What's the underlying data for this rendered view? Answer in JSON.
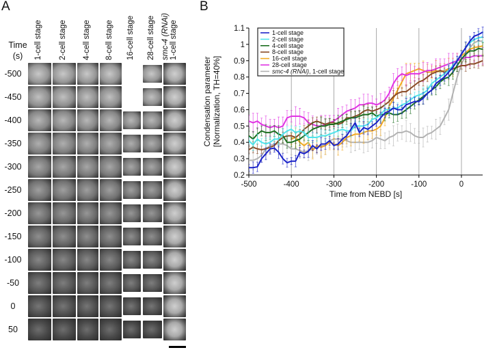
{
  "panelA": {
    "letter": "A",
    "time_header": [
      "Time",
      "(s)"
    ],
    "columns": [
      {
        "label": "1-cell stage",
        "italic_part": "",
        "line2": ""
      },
      {
        "label": "2-cell stage",
        "italic_part": "",
        "line2": ""
      },
      {
        "label": "4-cell stage",
        "italic_part": "",
        "line2": ""
      },
      {
        "label": "8-cell stage",
        "italic_part": "",
        "line2": ""
      },
      {
        "label": "16-cell stage",
        "italic_part": "",
        "line2": ""
      },
      {
        "label": "28-cell stage",
        "italic_part": "",
        "line2": ""
      },
      {
        "label": "",
        "italic_part": "smc-4 (RNAi)",
        "line2": "1-cell stage"
      }
    ],
    "rows": [
      "-500",
      "-450",
      "-400",
      "-350",
      "-300",
      "-250",
      "-200",
      "-150",
      "-100",
      "-50",
      "0",
      "50"
    ],
    "missing_cells": [
      [
        0,
        4
      ],
      [
        1,
        4
      ]
    ],
    "scale_bar": "scale-bar"
  },
  "chart_data": {
    "type": "line",
    "panel_letter": "B",
    "title": "",
    "xlabel": "Time from NEBD [s]",
    "ylabel_lines": [
      "Condensation parameter",
      "[Normalization, TH=40%]"
    ],
    "xlim": [
      -500,
      50
    ],
    "ylim": [
      0.2,
      1.1
    ],
    "xticks": [
      -500,
      -400,
      -300,
      -200,
      -100,
      0
    ],
    "yticks": [
      0.2,
      0.3,
      0.4,
      0.5,
      0.6,
      0.7,
      0.8,
      0.9,
      1,
      1.1
    ],
    "ytick_labels": [
      "0.2",
      "0.3",
      "0.4",
      "0.5",
      "0.6",
      "0.7",
      "0.8",
      "0.9",
      "1",
      "1.1"
    ],
    "xtick_labels": [
      "-500",
      "-400",
      "-300",
      "-200",
      "-100",
      "0"
    ],
    "grid": "vertical",
    "error_bars": true,
    "legend_position": "top-left",
    "series": [
      {
        "name": "1-cell stage",
        "italic": "",
        "color": "#1a22c8",
        "x": [
          -500,
          -490,
          -480,
          -470,
          -460,
          -450,
          -440,
          -430,
          -420,
          -410,
          -400,
          -390,
          -380,
          -370,
          -360,
          -350,
          -340,
          -330,
          -320,
          -310,
          -300,
          -290,
          -280,
          -270,
          -260,
          -250,
          -240,
          -230,
          -220,
          -210,
          -200,
          -190,
          -180,
          -170,
          -160,
          -150,
          -140,
          -130,
          -120,
          -110,
          -100,
          -90,
          -80,
          -70,
          -60,
          -50,
          -40,
          -30,
          -20,
          -10,
          0,
          10,
          20,
          30,
          40,
          50
        ],
        "y": [
          0.245,
          0.245,
          0.25,
          0.3,
          0.33,
          0.36,
          0.365,
          0.34,
          0.3,
          0.275,
          0.285,
          0.285,
          0.34,
          0.33,
          0.345,
          0.38,
          0.36,
          0.39,
          0.39,
          0.41,
          0.38,
          0.39,
          0.42,
          0.44,
          0.48,
          0.52,
          0.46,
          0.49,
          0.48,
          0.5,
          0.52,
          0.55,
          0.58,
          0.59,
          0.61,
          0.6,
          0.6,
          0.63,
          0.64,
          0.65,
          0.65,
          0.67,
          0.7,
          0.72,
          0.76,
          0.78,
          0.8,
          0.83,
          0.86,
          0.9,
          0.94,
          0.98,
          1.02,
          1.05,
          1.06,
          1.075
        ],
        "err": 0.03
      },
      {
        "name": "2-cell stage",
        "italic": "",
        "color": "#50e4ec",
        "x": [
          -500,
          -490,
          -480,
          -470,
          -460,
          -450,
          -440,
          -430,
          -420,
          -410,
          -400,
          -390,
          -380,
          -370,
          -360,
          -350,
          -340,
          -330,
          -320,
          -310,
          -300,
          -290,
          -280,
          -270,
          -260,
          -250,
          -240,
          -230,
          -220,
          -210,
          -200,
          -190,
          -180,
          -170,
          -160,
          -150,
          -140,
          -130,
          -120,
          -110,
          -100,
          -90,
          -80,
          -70,
          -60,
          -50,
          -40,
          -30,
          -20,
          -10,
          0,
          10,
          20,
          30,
          40,
          50
        ],
        "y": [
          0.41,
          0.385,
          0.42,
          0.4,
          0.39,
          0.4,
          0.42,
          0.42,
          0.45,
          0.47,
          0.48,
          0.46,
          0.47,
          0.46,
          0.43,
          0.43,
          0.43,
          0.44,
          0.44,
          0.45,
          0.46,
          0.47,
          0.48,
          0.47,
          0.47,
          0.5,
          0.5,
          0.5,
          0.51,
          0.54,
          0.55,
          0.57,
          0.6,
          0.6,
          0.61,
          0.61,
          0.63,
          0.64,
          0.66,
          0.68,
          0.69,
          0.7,
          0.72,
          0.76,
          0.78,
          0.8,
          0.82,
          0.84,
          0.87,
          0.9,
          0.94,
          0.98,
          1.01,
          1.03,
          1.04,
          1.045
        ],
        "err": 0.03
      },
      {
        "name": "4-cell stage",
        "italic": "",
        "color": "#1b6e1f",
        "x": [
          -500,
          -490,
          -480,
          -470,
          -460,
          -450,
          -440,
          -430,
          -420,
          -410,
          -400,
          -390,
          -380,
          -370,
          -360,
          -350,
          -340,
          -330,
          -320,
          -310,
          -300,
          -290,
          -280,
          -270,
          -260,
          -250,
          -240,
          -230,
          -220,
          -210,
          -200,
          -190,
          -180,
          -170,
          -160,
          -150,
          -140,
          -130,
          -120,
          -110,
          -100,
          -90,
          -80,
          -70,
          -60,
          -50,
          -40,
          -30,
          -20,
          -10,
          0,
          10,
          20,
          30,
          40,
          50
        ],
        "y": [
          0.44,
          0.42,
          0.45,
          0.47,
          0.46,
          0.46,
          0.47,
          0.45,
          0.44,
          0.4,
          0.4,
          0.41,
          0.42,
          0.44,
          0.46,
          0.48,
          0.49,
          0.5,
          0.5,
          0.51,
          0.51,
          0.52,
          0.53,
          0.54,
          0.55,
          0.55,
          0.56,
          0.57,
          0.57,
          0.58,
          0.56,
          0.57,
          0.57,
          0.58,
          0.57,
          0.57,
          0.58,
          0.6,
          0.62,
          0.64,
          0.66,
          0.68,
          0.7,
          0.72,
          0.74,
          0.77,
          0.79,
          0.8,
          0.83,
          0.87,
          0.91,
          0.94,
          0.96,
          0.96,
          0.975,
          0.97
        ],
        "err": 0.04
      },
      {
        "name": "8-cell stage",
        "italic": "",
        "color": "#8a4a26",
        "x": [
          -500,
          -490,
          -480,
          -470,
          -460,
          -450,
          -440,
          -430,
          -420,
          -410,
          -400,
          -390,
          -380,
          -370,
          -360,
          -350,
          -340,
          -330,
          -320,
          -310,
          -300,
          -290,
          -280,
          -270,
          -260,
          -250,
          -240,
          -230,
          -220,
          -210,
          -200,
          -190,
          -180,
          -170,
          -160,
          -150,
          -140,
          -130,
          -120,
          -110,
          -100,
          -90,
          -80,
          -70,
          -60,
          -50,
          -40,
          -30,
          -20,
          -10,
          0,
          10,
          20,
          30,
          40,
          50
        ],
        "y": [
          0.355,
          0.37,
          0.36,
          0.355,
          0.36,
          0.37,
          0.38,
          0.41,
          0.43,
          0.44,
          0.44,
          0.43,
          0.45,
          0.48,
          0.5,
          0.52,
          0.53,
          0.52,
          0.51,
          0.52,
          0.52,
          0.51,
          0.52,
          0.55,
          0.55,
          0.56,
          0.57,
          0.59,
          0.6,
          0.59,
          0.6,
          0.61,
          0.63,
          0.65,
          0.68,
          0.7,
          0.71,
          0.71,
          0.73,
          0.75,
          0.77,
          0.78,
          0.8,
          0.82,
          0.83,
          0.84,
          0.83,
          0.84,
          0.85,
          0.86,
          0.87,
          0.87,
          0.88,
          0.88,
          0.89,
          0.9
        ],
        "err": 0.03
      },
      {
        "name": "16-cell stage",
        "italic": "",
        "color": "#f2aa22",
        "x": [
          -400,
          -390,
          -380,
          -370,
          -360,
          -350,
          -340,
          -330,
          -320,
          -310,
          -300,
          -290,
          -280,
          -270,
          -260,
          -250,
          -240,
          -230,
          -220,
          -210,
          -200,
          -190,
          -180,
          -170,
          -160,
          -150,
          -140,
          -130,
          -120,
          -110,
          -100,
          -90,
          -80,
          -70,
          -60,
          -50,
          -40,
          -30,
          -20,
          -10,
          0,
          10,
          20,
          30,
          40,
          50
        ],
        "y": [
          0.42,
          0.43,
          0.4,
          0.38,
          0.4,
          0.35,
          0.38,
          0.37,
          0.38,
          0.4,
          0.39,
          0.38,
          0.4,
          0.43,
          0.44,
          0.45,
          0.45,
          0.46,
          0.47,
          0.47,
          0.48,
          0.5,
          0.55,
          0.62,
          0.67,
          0.72,
          0.77,
          0.82,
          0.83,
          0.84,
          0.85,
          0.84,
          0.83,
          0.83,
          0.84,
          0.83,
          0.84,
          0.85,
          0.86,
          0.9,
          0.93,
          0.95,
          0.97,
          0.98,
          0.985,
          0.99
        ],
        "err": 0.05
      },
      {
        "name": "28-cell stage",
        "italic": "",
        "color": "#e033e3",
        "x": [
          -500,
          -490,
          -480,
          -470,
          -460,
          -450,
          -440,
          -430,
          -420,
          -410,
          -400,
          -390,
          -380,
          -370,
          -360,
          -350,
          -340,
          -330,
          -320,
          -310,
          -300,
          -290,
          -280,
          -270,
          -260,
          -250,
          -240,
          -230,
          -220,
          -210,
          -200,
          -190,
          -180,
          -170,
          -160,
          -150,
          -140,
          -130,
          -120,
          -110,
          -100,
          -90,
          -80,
          -70,
          -60,
          -50,
          -40,
          -30,
          -20,
          -10,
          0,
          10,
          20,
          30,
          40,
          50
        ],
        "y": [
          0.53,
          0.52,
          0.53,
          0.51,
          0.5,
          0.49,
          0.5,
          0.49,
          0.5,
          0.55,
          0.56,
          0.56,
          0.56,
          0.55,
          0.52,
          0.51,
          0.5,
          0.5,
          0.51,
          0.52,
          0.53,
          0.55,
          0.57,
          0.59,
          0.6,
          0.61,
          0.63,
          0.63,
          0.64,
          0.64,
          0.63,
          0.64,
          0.66,
          0.7,
          0.76,
          0.8,
          0.82,
          0.81,
          0.82,
          0.82,
          0.82,
          0.83,
          0.84,
          0.84,
          0.85,
          0.86,
          0.87,
          0.88,
          0.89,
          0.9,
          0.91,
          0.92,
          0.92,
          0.93,
          0.93,
          0.93
        ],
        "err": 0.05
      },
      {
        "name": ", 1-cell stage",
        "italic": "smc-4 (RNAi)",
        "color": "#b2b2b2",
        "x": [
          -500,
          -490,
          -480,
          -470,
          -460,
          -450,
          -440,
          -430,
          -420,
          -410,
          -400,
          -390,
          -380,
          -370,
          -360,
          -350,
          -340,
          -330,
          -320,
          -310,
          -300,
          -290,
          -280,
          -270,
          -260,
          -250,
          -240,
          -230,
          -220,
          -210,
          -200,
          -190,
          -180,
          -170,
          -160,
          -150,
          -140,
          -130,
          -120,
          -110,
          -100,
          -90,
          -80,
          -70,
          -60,
          -50,
          -40,
          -30,
          -20,
          -10,
          0,
          10,
          20,
          30,
          40,
          50
        ],
        "y": [
          0.29,
          0.29,
          0.3,
          0.32,
          0.36,
          0.38,
          0.39,
          0.39,
          0.39,
          0.38,
          0.36,
          0.36,
          0.35,
          0.34,
          0.35,
          0.36,
          0.37,
          0.38,
          0.38,
          0.41,
          0.42,
          0.42,
          0.42,
          0.41,
          0.4,
          0.4,
          0.4,
          0.4,
          0.4,
          0.41,
          0.43,
          0.42,
          0.41,
          0.43,
          0.44,
          0.46,
          0.46,
          0.47,
          0.46,
          0.44,
          0.43,
          0.43,
          0.45,
          0.46,
          0.48,
          0.5,
          0.55,
          0.6,
          0.7,
          0.8,
          0.88,
          0.93,
          0.98,
          1.01,
          1.02,
          1.02
        ],
        "err": 0.05
      }
    ]
  }
}
